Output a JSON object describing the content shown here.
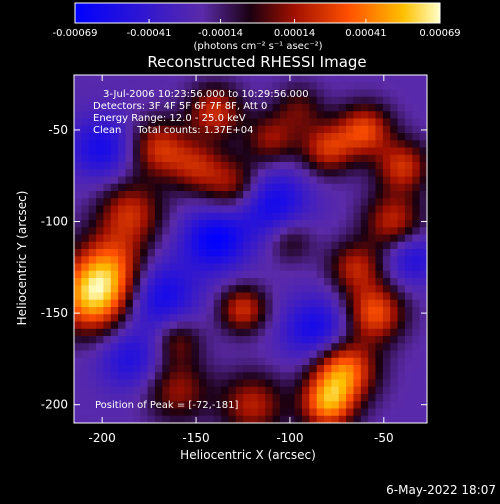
{
  "chart_data": {
    "type": "heatmap",
    "title": "Reconstructed RHESSI Image",
    "xlabel": "Heliocentric X (arcsec)",
    "ylabel": "Heliocentric Y (arcsec)",
    "xlim": [
      -215,
      -27
    ],
    "ylim": [
      -210,
      -20
    ],
    "xticks": [
      -200,
      -150,
      -100,
      -50
    ],
    "yticks": [
      -50,
      -100,
      -150,
      -200
    ],
    "colorbar": {
      "ticks": [
        -0.00069,
        -0.00041,
        -0.00014,
        0.00014,
        0.00041,
        0.00069
      ],
      "tick_labels": [
        "-0.00069",
        "-0.00041",
        "-0.00014",
        "0.00014",
        "0.00041",
        "0.00069"
      ],
      "units": "(photons cm⁻² s⁻¹ asec⁻²)",
      "range": [
        -0.00069,
        0.00069
      ]
    },
    "annotations": [
      "3-Jul-2006 10:23:56.000 to 10:29:56.000",
      "Detectors: 3F 4F 5F 6F 7F 8F, Att 0",
      "Energy Range: 12.0 - 25.0 keV",
      "Clean     Total counts: 1.37E+04"
    ],
    "peak_label": "Position of Peak = [-72,-181]",
    "footer_date": "6-May-2022 18:07",
    "blobs": [
      {
        "x": -205,
        "y": -142,
        "value": 0.00069,
        "sigma": 14
      },
      {
        "x": -195,
        "y": -125,
        "value": 0.0005,
        "sigma": 14
      },
      {
        "x": -185,
        "y": -95,
        "value": 0.00042,
        "sigma": 12
      },
      {
        "x": -170,
        "y": -60,
        "value": 0.00045,
        "sigma": 11
      },
      {
        "x": -150,
        "y": -70,
        "value": 0.00035,
        "sigma": 10
      },
      {
        "x": -130,
        "y": -80,
        "value": 0.0004,
        "sigma": 11
      },
      {
        "x": -140,
        "y": -40,
        "value": 0.00045,
        "sigma": 10
      },
      {
        "x": -110,
        "y": -55,
        "value": 0.00035,
        "sigma": 10
      },
      {
        "x": -95,
        "y": -38,
        "value": 0.00025,
        "sigma": 9
      },
      {
        "x": -80,
        "y": -60,
        "value": 0.00045,
        "sigma": 10
      },
      {
        "x": -60,
        "y": -50,
        "value": 0.0005,
        "sigma": 10
      },
      {
        "x": -40,
        "y": -70,
        "value": 0.00045,
        "sigma": 10
      },
      {
        "x": -45,
        "y": -100,
        "value": 0.00042,
        "sigma": 11
      },
      {
        "x": -65,
        "y": -125,
        "value": 0.0004,
        "sigma": 10
      },
      {
        "x": -55,
        "y": -150,
        "value": 0.00055,
        "sigma": 11
      },
      {
        "x": -72,
        "y": -181,
        "value": 0.00069,
        "sigma": 12
      },
      {
        "x": -80,
        "y": -200,
        "value": 0.0006,
        "sigma": 10
      },
      {
        "x": -120,
        "y": -200,
        "value": 0.0004,
        "sigma": 12
      },
      {
        "x": -160,
        "y": -192,
        "value": 0.00035,
        "sigma": 12
      },
      {
        "x": -125,
        "y": -148,
        "value": 0.00045,
        "sigma": 9
      },
      {
        "x": -160,
        "y": -165,
        "value": 0.0003,
        "sigma": 9
      },
      {
        "x": -100,
        "y": -110,
        "value": 0.00025,
        "sigma": 9
      },
      {
        "x": -110,
        "y": -90,
        "value": -0.0004,
        "sigma": 14
      },
      {
        "x": -170,
        "y": -140,
        "value": -0.0004,
        "sigma": 14
      },
      {
        "x": -140,
        "y": -110,
        "value": -0.00045,
        "sigma": 12
      },
      {
        "x": -85,
        "y": -160,
        "value": -0.0004,
        "sigma": 13
      },
      {
        "x": -200,
        "y": -60,
        "value": -0.00035,
        "sigma": 12
      },
      {
        "x": -35,
        "y": -120,
        "value": -0.0003,
        "sigma": 10
      },
      {
        "x": -185,
        "y": -175,
        "value": -0.0003,
        "sigma": 12
      }
    ]
  }
}
